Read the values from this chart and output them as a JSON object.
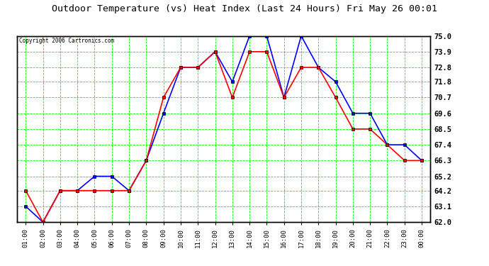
{
  "title": "Outdoor Temperature (vs) Heat Index (Last 24 Hours) Fri May 26 00:01",
  "copyright": "Copyright 2006 Cartronics.com",
  "x_labels": [
    "01:00",
    "02:00",
    "03:00",
    "04:00",
    "05:00",
    "06:00",
    "07:00",
    "08:00",
    "09:00",
    "10:00",
    "11:00",
    "12:00",
    "13:00",
    "14:00",
    "15:00",
    "16:00",
    "17:00",
    "18:00",
    "19:00",
    "20:00",
    "21:00",
    "22:00",
    "23:00",
    "00:00"
  ],
  "temp_blue": [
    63.1,
    62.0,
    64.2,
    64.2,
    65.2,
    65.2,
    64.2,
    66.3,
    69.6,
    72.8,
    72.8,
    73.9,
    71.8,
    75.0,
    75.0,
    70.7,
    75.0,
    72.8,
    71.8,
    69.6,
    69.6,
    67.4,
    67.4,
    66.3
  ],
  "temp_red": [
    64.2,
    62.0,
    64.2,
    64.2,
    64.2,
    64.2,
    64.2,
    66.3,
    70.7,
    72.8,
    72.8,
    73.9,
    70.7,
    73.9,
    73.9,
    70.7,
    72.8,
    72.8,
    70.7,
    68.5,
    68.5,
    67.4,
    66.3,
    66.3
  ],
  "y_ticks": [
    62.0,
    63.1,
    64.2,
    65.2,
    66.3,
    67.4,
    68.5,
    69.6,
    70.7,
    71.8,
    72.8,
    73.9,
    75.0
  ],
  "y_min": 62.0,
  "y_max": 75.0,
  "blue_color": "#0000FF",
  "red_color": "#FF0000",
  "bg_color": "#FFFFFF",
  "plot_bg_color": "#FFFFFF",
  "grid_color": "#00FF00",
  "title_color": "#000000",
  "copyright_color": "#000000",
  "marker": "s",
  "marker_size": 3,
  "line_width": 1.2
}
